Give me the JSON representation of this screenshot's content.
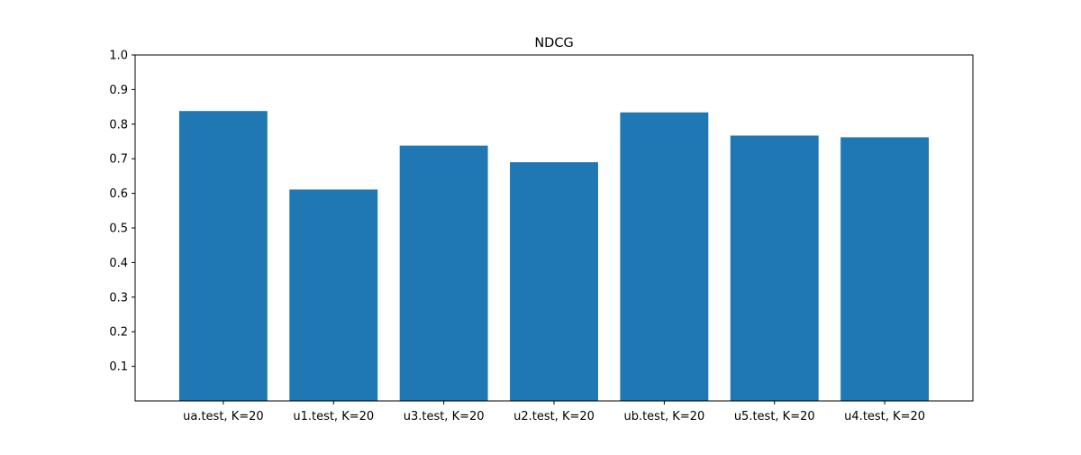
{
  "chart_data": {
    "type": "bar",
    "title": "NDCG",
    "xlabel": "",
    "ylabel": "",
    "categories": [
      "ua.test, K=20",
      "u1.test, K=20",
      "u3.test, K=20",
      "u2.test, K=20",
      "ub.test, K=20",
      "u5.test, K=20",
      "u4.test, K=20"
    ],
    "values": [
      0.838,
      0.611,
      0.738,
      0.69,
      0.834,
      0.767,
      0.762
    ],
    "ylim": [
      0,
      1.0
    ],
    "yticks": [
      "0.1",
      "0.2",
      "0.3",
      "0.4",
      "0.5",
      "0.6",
      "0.7",
      "0.8",
      "0.9",
      "1.0"
    ],
    "grid": false,
    "legend": "none",
    "bar_color": "#1f77b4"
  }
}
